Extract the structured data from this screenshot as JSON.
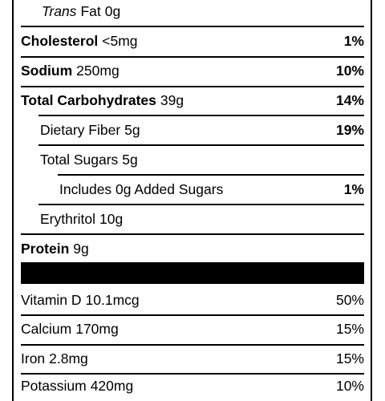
{
  "nutrients": [
    {
      "key": "trans_fat",
      "name_italic": "Trans",
      "name": "Fat",
      "amount": "0g",
      "percent": ""
    },
    {
      "key": "cholesterol",
      "name": "Cholesterol",
      "amount": "<5mg",
      "percent": "1%"
    },
    {
      "key": "sodium",
      "name": "Sodium",
      "amount": "250mg",
      "percent": "10%"
    },
    {
      "key": "total_carbohydrates",
      "name": "Total Carbohydrates",
      "amount": "39g",
      "percent": "14%"
    },
    {
      "key": "dietary_fiber",
      "name": "Dietary Fiber",
      "amount": "5g",
      "percent": "19%"
    },
    {
      "key": "total_sugars",
      "name": "Total Sugars",
      "amount": "5g",
      "percent": ""
    },
    {
      "key": "added_sugars",
      "name": "Includes 0g Added Sugars",
      "amount": "",
      "percent": "1%"
    },
    {
      "key": "erythritol",
      "name": "Erythritol",
      "amount": "10g",
      "percent": ""
    },
    {
      "key": "protein",
      "name": "Protein",
      "amount": "9g",
      "percent": ""
    }
  ],
  "vitamins": [
    {
      "key": "vitamin_d",
      "name": "Vitamin D",
      "amount": "10.1mcg",
      "percent": "50%"
    },
    {
      "key": "calcium",
      "name": "Calcium",
      "amount": "170mg",
      "percent": "15%"
    },
    {
      "key": "iron",
      "name": "Iron",
      "amount": "2.8mg",
      "percent": "15%"
    },
    {
      "key": "potassium",
      "name": "Potassium",
      "amount": "420mg",
      "percent": "10%"
    }
  ]
}
